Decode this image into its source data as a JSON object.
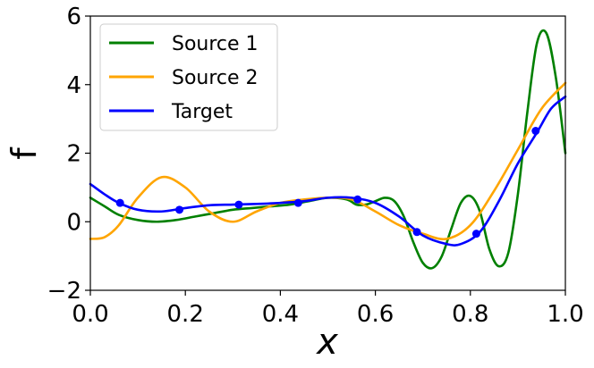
{
  "chart_data": {
    "type": "line",
    "xlabel": "x",
    "ylabel": "f",
    "xlim": [
      0.0,
      1.0
    ],
    "ylim": [
      -2,
      6
    ],
    "xticks": [
      "0.0",
      "0.2",
      "0.4",
      "0.6",
      "0.8",
      "1.0"
    ],
    "yticks": [
      "−2",
      "0",
      "2",
      "4",
      "6"
    ],
    "grid": false,
    "legend_position": "top-left",
    "series": [
      {
        "name": "Source 1",
        "color": "#008000",
        "x": [
          0.0,
          0.03,
          0.06,
          0.1,
          0.14,
          0.18,
          0.22,
          0.26,
          0.3,
          0.34,
          0.38,
          0.42,
          0.46,
          0.5,
          0.54,
          0.56,
          0.58,
          0.6,
          0.62,
          0.64,
          0.66,
          0.68,
          0.7,
          0.72,
          0.74,
          0.76,
          0.78,
          0.8,
          0.82,
          0.84,
          0.86,
          0.88,
          0.9,
          0.92,
          0.94,
          0.96,
          0.98,
          1.0
        ],
        "y": [
          0.7,
          0.45,
          0.2,
          0.05,
          0.0,
          0.05,
          0.15,
          0.25,
          0.35,
          0.4,
          0.45,
          0.5,
          0.6,
          0.7,
          0.65,
          0.5,
          0.5,
          0.6,
          0.7,
          0.6,
          0.15,
          -0.6,
          -1.2,
          -1.35,
          -1.0,
          -0.2,
          0.55,
          0.75,
          0.3,
          -0.8,
          -1.3,
          -0.9,
          0.8,
          3.2,
          5.2,
          5.5,
          4.2,
          2.0
        ]
      },
      {
        "name": "Source 2",
        "color": "#FFA500",
        "x": [
          0.0,
          0.03,
          0.06,
          0.1,
          0.15,
          0.2,
          0.25,
          0.3,
          0.35,
          0.4,
          0.45,
          0.5,
          0.55,
          0.6,
          0.65,
          0.7,
          0.75,
          0.8,
          0.85,
          0.9,
          0.95,
          1.0
        ],
        "y": [
          -0.5,
          -0.45,
          -0.1,
          0.7,
          1.3,
          1.0,
          0.3,
          0.0,
          0.3,
          0.55,
          0.65,
          0.7,
          0.65,
          0.3,
          -0.1,
          -0.35,
          -0.5,
          -0.1,
          0.9,
          2.1,
          3.3,
          4.05
        ]
      },
      {
        "name": "Target",
        "color": "#0000FF",
        "x": [
          0.0,
          0.03,
          0.06,
          0.1,
          0.15,
          0.2,
          0.25,
          0.3,
          0.35,
          0.4,
          0.45,
          0.5,
          0.55,
          0.6,
          0.65,
          0.7,
          0.75,
          0.78,
          0.82,
          0.86,
          0.9,
          0.94,
          0.97,
          1.0
        ],
        "y": [
          1.1,
          0.8,
          0.55,
          0.35,
          0.3,
          0.4,
          0.48,
          0.5,
          0.52,
          0.55,
          0.6,
          0.7,
          0.7,
          0.55,
          0.15,
          -0.4,
          -0.65,
          -0.65,
          -0.3,
          0.6,
          1.7,
          2.6,
          3.3,
          3.65
        ]
      }
    ],
    "markers": {
      "series": "Target",
      "color": "#0000FF",
      "x": [
        0.0625,
        0.1875,
        0.3125,
        0.4375,
        0.5625,
        0.6875,
        0.8125,
        0.9375
      ],
      "y": [
        0.55,
        0.35,
        0.5,
        0.55,
        0.65,
        -0.3,
        -0.35,
        2.65
      ]
    }
  }
}
